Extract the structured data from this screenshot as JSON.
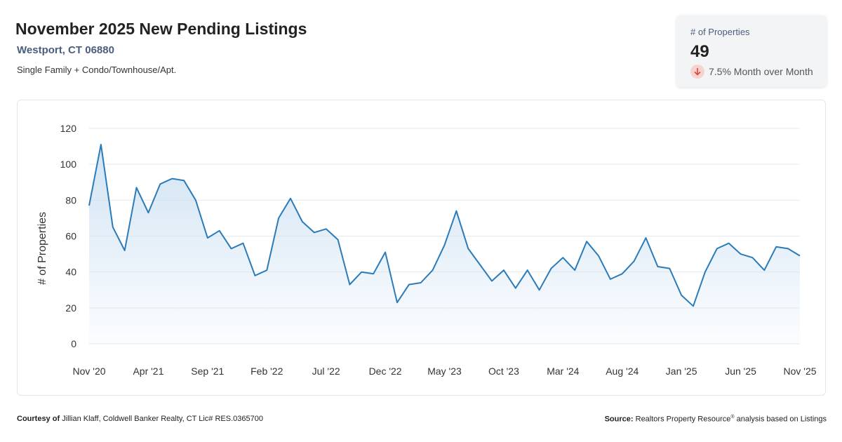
{
  "header": {
    "title": "November 2025 New Pending Listings",
    "location": "Westport, CT 06880",
    "property_types": "Single Family + Condo/Townhouse/Apt."
  },
  "stat_card": {
    "label": "# of Properties",
    "value": "49",
    "change": "7.5% Month over Month",
    "direction": "down",
    "badge_color": "#f7d3cf",
    "arrow_color": "#d9463b"
  },
  "footer": {
    "courtesy_label": "Courtesy of",
    "courtesy_text": "Jillian Klaff, Coldwell Banker Realty, CT Lic# RES.0365700",
    "source_label": "Source:",
    "source_text_1": "Realtors Property Resource",
    "source_mark": "®",
    "source_text_2": " analysis based on Listings"
  },
  "chart_data": {
    "type": "area",
    "ylabel": "# of Properties",
    "ylim": [
      0,
      120
    ],
    "yticks": [
      0,
      20,
      40,
      60,
      80,
      100,
      120
    ],
    "grid": true,
    "line_color": "#2b7bb9",
    "fill_color": "#cfe2f3",
    "x_tick_labels": [
      {
        "index": 0,
        "label": "Nov '20"
      },
      {
        "index": 5,
        "label": "Apr '21"
      },
      {
        "index": 10,
        "label": "Sep '21"
      },
      {
        "index": 15,
        "label": "Feb '22"
      },
      {
        "index": 20,
        "label": "Jul '22"
      },
      {
        "index": 25,
        "label": "Dec '22"
      },
      {
        "index": 30,
        "label": "May '23"
      },
      {
        "index": 35,
        "label": "Oct '23"
      },
      {
        "index": 40,
        "label": "Mar '24"
      },
      {
        "index": 45,
        "label": "Aug '24"
      },
      {
        "index": 50,
        "label": "Jan '25"
      },
      {
        "index": 55,
        "label": "Jun '25"
      },
      {
        "index": 60,
        "label": "Nov '25"
      }
    ],
    "values": [
      77,
      111,
      65,
      52,
      87,
      73,
      89,
      92,
      91,
      80,
      59,
      63,
      53,
      56,
      38,
      41,
      70,
      81,
      68,
      62,
      64,
      58,
      33,
      40,
      39,
      51,
      23,
      33,
      34,
      41,
      55,
      74,
      53,
      44,
      35,
      41,
      31,
      41,
      30,
      42,
      48,
      41,
      57,
      49,
      36,
      39,
      46,
      59,
      43,
      42,
      27,
      21,
      40,
      53,
      56,
      50,
      48,
      41,
      54,
      53,
      49
    ]
  }
}
